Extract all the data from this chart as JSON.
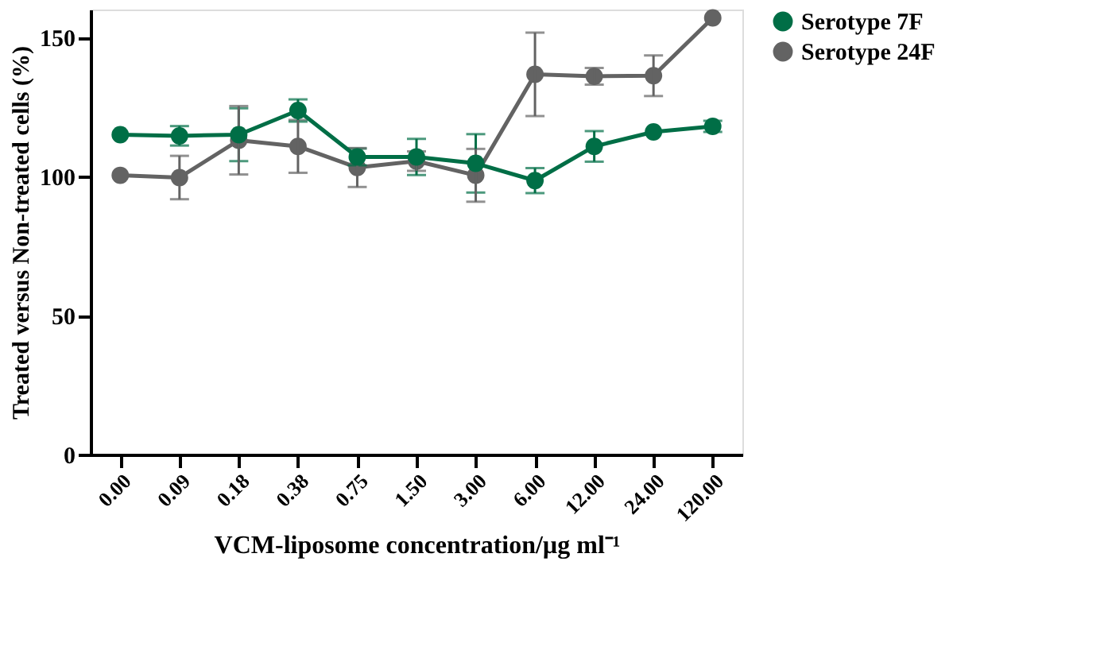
{
  "chart_data": {
    "type": "line",
    "xlabel": "VCM-liposome concentration/µg ml⁻¹",
    "ylabel": "Treated versus Non-treated cells (%)",
    "categories": [
      "0.00",
      "0.09",
      "0.18",
      "0.38",
      "0.75",
      "1.50",
      "3.00",
      "6.00",
      "12.00",
      "24.00",
      "120.00"
    ],
    "series": [
      {
        "name": "Serotype 7F",
        "color": "#006e46",
        "values": [
          115,
          114.6,
          115,
          123.7,
          107,
          107,
          104.7,
          98.5,
          110.8,
          116,
          118
        ],
        "errors": [
          null,
          3.5,
          9.5,
          4,
          3,
          6.5,
          10.5,
          4.5,
          5.5,
          null,
          2
        ]
      },
      {
        "name": "Serotype 24F",
        "color": "#636363",
        "values": [
          100.4,
          99.6,
          113,
          110.8,
          103.2,
          105.5,
          100.4,
          136.7,
          136,
          136.2,
          157
        ],
        "errors": [
          null,
          7.8,
          12.3,
          9.5,
          7,
          3.5,
          9.5,
          15,
          3,
          7.3,
          null
        ]
      }
    ],
    "ylim": [
      0,
      160
    ],
    "yticks": [
      0,
      50,
      100,
      150
    ],
    "grid": false,
    "legend": "right",
    "marker": "circle",
    "line_style": "solid"
  }
}
